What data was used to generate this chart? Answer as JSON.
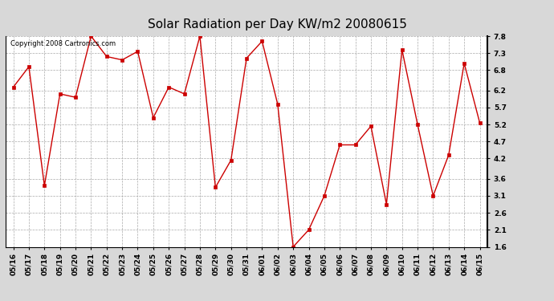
{
  "title": "Solar Radiation per Day KW/m2 20080615",
  "copyright_text": "Copyright 2008 Cartronics.com",
  "dates": [
    "05/16",
    "05/17",
    "05/18",
    "05/19",
    "05/20",
    "05/21",
    "05/22",
    "05/23",
    "05/24",
    "05/25",
    "05/26",
    "05/27",
    "05/28",
    "05/29",
    "05/30",
    "05/31",
    "06/01",
    "06/02",
    "06/03",
    "06/04",
    "06/05",
    "06/06",
    "06/07",
    "06/08",
    "06/09",
    "06/10",
    "06/11",
    "06/12",
    "06/13",
    "06/14",
    "06/15"
  ],
  "values": [
    6.3,
    6.9,
    3.4,
    6.1,
    6.0,
    7.8,
    7.2,
    7.1,
    7.35,
    5.4,
    6.3,
    6.1,
    7.8,
    3.35,
    4.15,
    7.15,
    7.65,
    5.8,
    1.6,
    2.1,
    3.1,
    4.6,
    4.6,
    5.15,
    2.85,
    7.4,
    5.2,
    3.1,
    4.3,
    7.0,
    5.25
  ],
  "line_color": "#cc0000",
  "marker": "s",
  "marker_size": 2.5,
  "bg_color": "#ffffff",
  "plot_bg_color": "#ffffff",
  "outer_bg_color": "#d8d8d8",
  "grid_color": "#aaaaaa",
  "ylim": [
    1.6,
    7.8
  ],
  "yticks": [
    1.6,
    2.1,
    2.6,
    3.1,
    3.6,
    4.2,
    4.7,
    5.2,
    5.7,
    6.2,
    6.8,
    7.3,
    7.8
  ],
  "title_fontsize": 11,
  "copyright_fontsize": 6,
  "tick_fontsize": 6.5,
  "line_width": 1.0
}
